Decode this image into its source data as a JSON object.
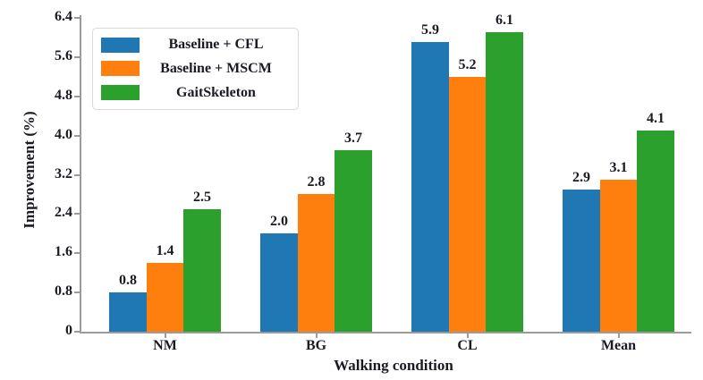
{
  "chart_data": {
    "type": "bar",
    "title": "",
    "xlabel": "Walking condition",
    "ylabel": "Improvement (%)",
    "categories": [
      "NM",
      "BG",
      "CL",
      "Mean"
    ],
    "series": [
      {
        "name": "Baseline + CFL",
        "color": "#1f77b4",
        "values": [
          0.8,
          2.0,
          5.9,
          2.9
        ],
        "labels": [
          "0.8",
          "2.0",
          "5.9",
          "2.9"
        ]
      },
      {
        "name": "Baseline + MSCM",
        "color": "#ff7f0e",
        "values": [
          1.4,
          2.8,
          5.2,
          3.1
        ],
        "labels": [
          "1.4",
          "2.8",
          "5.2",
          "3.1"
        ]
      },
      {
        "name": "GaitSkeleton",
        "color": "#2ca02c",
        "values": [
          2.5,
          3.7,
          6.1,
          4.1
        ],
        "labels": [
          "2.5",
          "3.7",
          "6.1",
          "4.1"
        ]
      }
    ],
    "ylim": [
      0,
      6.4
    ],
    "yticks": [
      {
        "value": 0,
        "label": "0"
      },
      {
        "value": 0.8,
        "label": "0.8"
      },
      {
        "value": 1.6,
        "label": "1.6"
      },
      {
        "value": 2.4,
        "label": "2.4"
      },
      {
        "value": 3.2,
        "label": "3.2"
      },
      {
        "value": 4.0,
        "label": "4.0"
      },
      {
        "value": 4.8,
        "label": "4.8"
      },
      {
        "value": 5.6,
        "label": "5.6"
      },
      {
        "value": 6.4,
        "label": "6.4"
      }
    ],
    "legend_position": "upper left",
    "grid": false,
    "bar_value_labels": true
  },
  "style": {
    "axis_color": "#9b9b9b",
    "text_color": "#1a1a22",
    "legend_border": "#d9d9d9",
    "background": "#ffffff"
  }
}
